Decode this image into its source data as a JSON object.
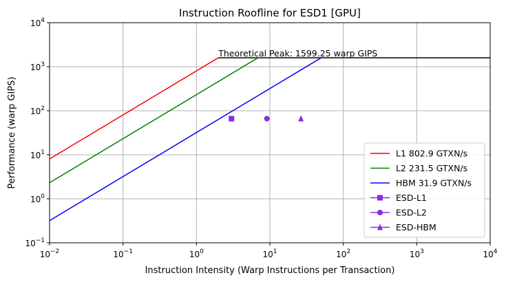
{
  "chart_data": {
    "type": "line",
    "title": "Instruction Roofline for ESD1 [GPU]",
    "xlabel": "Instruction Intensity (Warp Instructions per Transaction)",
    "ylabel": "Performance (warp GIPS)",
    "xscale": "log",
    "yscale": "log",
    "xlim": [
      0.01,
      10000
    ],
    "ylim": [
      0.1,
      10000
    ],
    "grid": true,
    "legend_position": "lower right",
    "x_ticks": [
      {
        "base": "10",
        "exp": "−2",
        "value": 0.01
      },
      {
        "base": "10",
        "exp": "−1",
        "value": 0.1
      },
      {
        "base": "10",
        "exp": "0",
        "value": 1
      },
      {
        "base": "10",
        "exp": "1",
        "value": 10
      },
      {
        "base": "10",
        "exp": "2",
        "value": 100
      },
      {
        "base": "10",
        "exp": "3",
        "value": 1000
      },
      {
        "base": "10",
        "exp": "4",
        "value": 10000
      }
    ],
    "y_ticks": [
      {
        "base": "10",
        "exp": "−1",
        "value": 0.1
      },
      {
        "base": "10",
        "exp": "0",
        "value": 1
      },
      {
        "base": "10",
        "exp": "1",
        "value": 10
      },
      {
        "base": "10",
        "exp": "2",
        "value": 100
      },
      {
        "base": "10",
        "exp": "3",
        "value": 1000
      },
      {
        "base": "10",
        "exp": "4",
        "value": 10000
      }
    ],
    "peak": {
      "value": 1599.25,
      "label": "Theoretical Peak: 1599.25 warp GIPS",
      "color": "#000000"
    },
    "series": [
      {
        "name": "L1 802.9 GTXN/s",
        "kind": "roof",
        "bandwidth": 802.9,
        "color": "#ff0000"
      },
      {
        "name": "L2 231.5 GTXN/s",
        "kind": "roof",
        "bandwidth": 231.5,
        "color": "#008000"
      },
      {
        "name": "HBM 31.9 GTXN/s",
        "kind": "roof",
        "bandwidth": 31.9,
        "color": "#0000ff"
      },
      {
        "name": "ESD-L1",
        "kind": "point",
        "x": 3.0,
        "y": 66,
        "marker": "square",
        "color": "#8a2be2"
      },
      {
        "name": "ESD-L2",
        "kind": "point",
        "x": 9.1,
        "y": 66,
        "marker": "circle",
        "color": "#8a2be2"
      },
      {
        "name": "ESD-HBM",
        "kind": "point",
        "x": 26.5,
        "y": 66,
        "marker": "triangle",
        "color": "#8a2be2"
      }
    ]
  }
}
